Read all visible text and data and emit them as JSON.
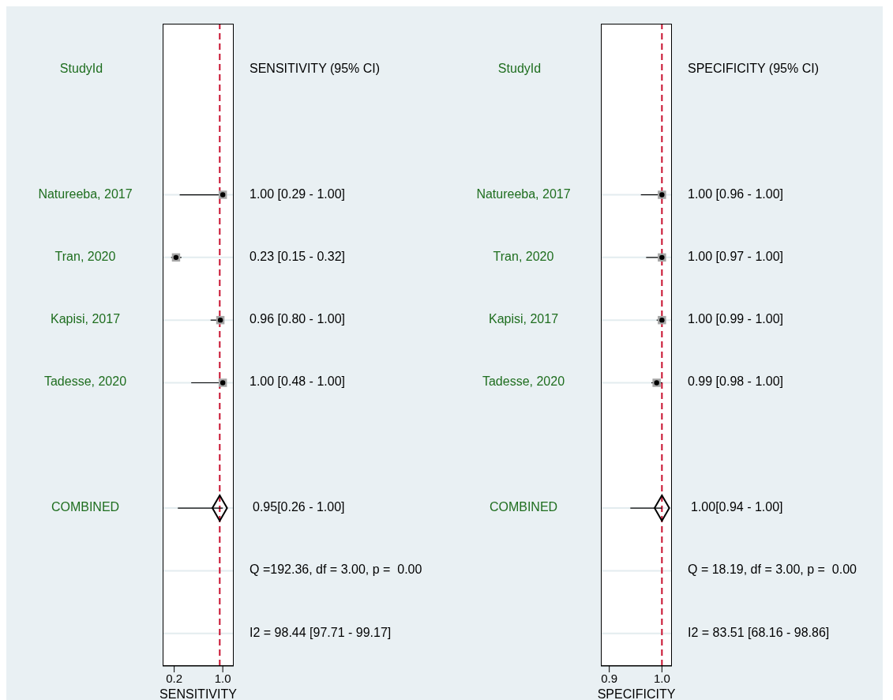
{
  "chart_data": [
    {
      "type": "scatter",
      "orientation": "horizontal",
      "ylabel": "StudyId",
      "xlabel": "SENSITIVITY",
      "categories": [
        "Natureeba, 2017",
        "Tran, 2020",
        "Kapisi, 2017",
        "Tadesse, 2020",
        null,
        "COMBINED",
        null,
        null
      ],
      "xlim": [
        0.01,
        1.18
      ],
      "xticks": [
        0.2,
        {
          "value": 1,
          "label": "1.0"
        }
      ],
      "grid": "y",
      "ref_lines": [
        {
          "axis": "x",
          "value": 0.95,
          "color": "#c8102e",
          "line_style": "dashed"
        }
      ],
      "annotations": [
        "SENSITIVITY (95% CI)",
        "Q =192.36, df = 3.00, p =  0.00",
        "I2 = 98.44 [97.71 - 99.17]"
      ],
      "series": [
        {
          "marker": "square",
          "color": "#a6a6a6",
          "values": [
            1.0,
            0.23,
            0.96,
            1.0,
            null,
            null,
            null,
            null
          ],
          "errors": [
            [
              0.29,
              1.0
            ],
            [
              0.15,
              0.32
            ],
            [
              0.8,
              1.0
            ],
            [
              0.48,
              1.0
            ],
            null,
            null,
            null,
            null
          ],
          "value_labels": [
            "1.00 [0.29 - 1.00]",
            "0.23 [0.15 - 0.32]",
            "0.96 [0.80 - 1.00]",
            "1.00 [0.48 - 1.00]",
            null,
            null,
            null,
            null
          ]
        },
        {
          "marker": "diamond",
          "color": "#000000",
          "values": [
            null,
            null,
            null,
            null,
            null,
            0.95,
            null,
            null
          ],
          "errors": [
            null,
            null,
            null,
            null,
            null,
            [
              0.26,
              1.0
            ],
            null,
            null
          ],
          "value_labels": [
            null,
            null,
            null,
            null,
            null,
            "0.95[0.26 - 1.00]",
            null,
            null
          ]
        }
      ]
    },
    {
      "type": "scatter",
      "orientation": "horizontal",
      "ylabel": "StudyId",
      "xlabel": "SPECIFICITY",
      "categories": [
        "Natureeba, 2017",
        "Tran, 2020",
        "Kapisi, 2017",
        "Tadesse, 2020",
        null,
        "COMBINED",
        null,
        null
      ],
      "xlim": [
        0.884,
        1.019
      ],
      "xticks": [
        0.9,
        {
          "value": 1,
          "label": "1.0"
        }
      ],
      "grid": "y",
      "ref_lines": [
        {
          "axis": "x",
          "value": 1.0,
          "color": "#c8102e",
          "line_style": "dashed"
        }
      ],
      "annotations": [
        "SPECIFICITY (95% CI)",
        "Q = 18.19, df = 3.00, p =  0.00",
        "I2 = 83.51 [68.16 - 98.86]"
      ],
      "series": [
        {
          "marker": "square",
          "color": "#a6a6a6",
          "values": [
            1.0,
            1.0,
            1.0,
            0.99,
            null,
            null,
            null,
            null
          ],
          "errors": [
            [
              0.96,
              1.0
            ],
            [
              0.97,
              1.0
            ],
            [
              0.99,
              1.0
            ],
            [
              0.98,
              1.0
            ],
            null,
            null,
            null,
            null
          ],
          "value_labels": [
            "1.00 [0.96 - 1.00]",
            "1.00 [0.97 - 1.00]",
            "1.00 [0.99 - 1.00]",
            "0.99 [0.98 - 1.00]",
            null,
            null,
            null,
            null
          ]
        },
        {
          "marker": "diamond",
          "color": "#000000",
          "values": [
            null,
            null,
            null,
            null,
            null,
            1.0,
            null,
            null
          ],
          "errors": [
            null,
            null,
            null,
            null,
            null,
            [
              0.94,
              1.0
            ],
            null,
            null
          ],
          "value_labels": [
            null,
            null,
            null,
            null,
            null,
            "1.00[0.94 - 1.00]",
            null,
            null
          ]
        }
      ]
    }
  ]
}
